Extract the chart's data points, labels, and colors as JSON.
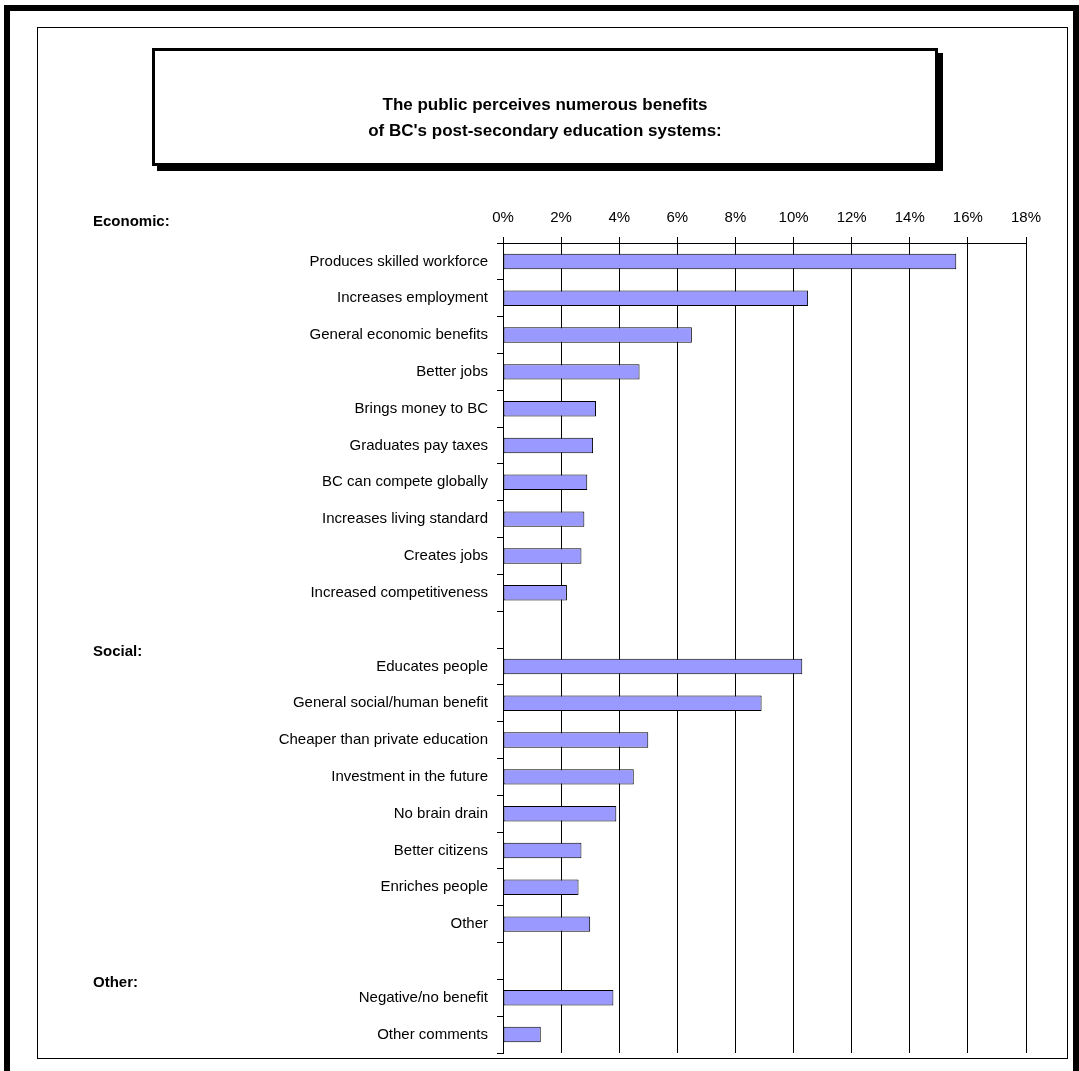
{
  "chart_data": {
    "type": "bar",
    "orientation": "horizontal",
    "title": "The public perceives numerous benefits\nof BC's post-secondary education systems:",
    "categories": [
      "Produces skilled workforce",
      "Increases employment",
      "General economic benefits",
      "Better jobs",
      "Brings money to BC",
      "Graduates pay taxes",
      "BC can compete globally",
      "Increases living standard",
      "Creates jobs",
      "Increased competitiveness",
      null,
      "Educates people",
      "General social/human benefit",
      "Cheaper than private education",
      "Investment in the future",
      "No brain drain",
      "Better citizens",
      "Enriches people",
      "Other",
      null,
      "Negative/no benefit",
      "Other comments"
    ],
    "values": [
      15.6,
      10.5,
      6.5,
      4.7,
      3.2,
      3.1,
      2.9,
      2.8,
      2.7,
      2.2,
      null,
      10.3,
      8.9,
      5.0,
      4.5,
      3.9,
      2.7,
      2.6,
      3.0,
      null,
      3.8,
      1.3
    ],
    "color": "#9999ff",
    "xlim": [
      0,
      18
    ],
    "xticks": [
      {
        "value": 0,
        "label": "0%"
      },
      {
        "value": 2,
        "label": "2%"
      },
      {
        "value": 4,
        "label": "4%"
      },
      {
        "value": 6,
        "label": "6%"
      },
      {
        "value": 8,
        "label": "8%"
      },
      {
        "value": 10,
        "label": "10%"
      },
      {
        "value": 12,
        "label": "12%"
      },
      {
        "value": 14,
        "label": "14%"
      },
      {
        "value": 16,
        "label": "16%"
      },
      {
        "value": 18,
        "label": "18%"
      }
    ],
    "grid": "x",
    "annotations": [
      "Economic:",
      "Social:",
      "Other:"
    ]
  }
}
